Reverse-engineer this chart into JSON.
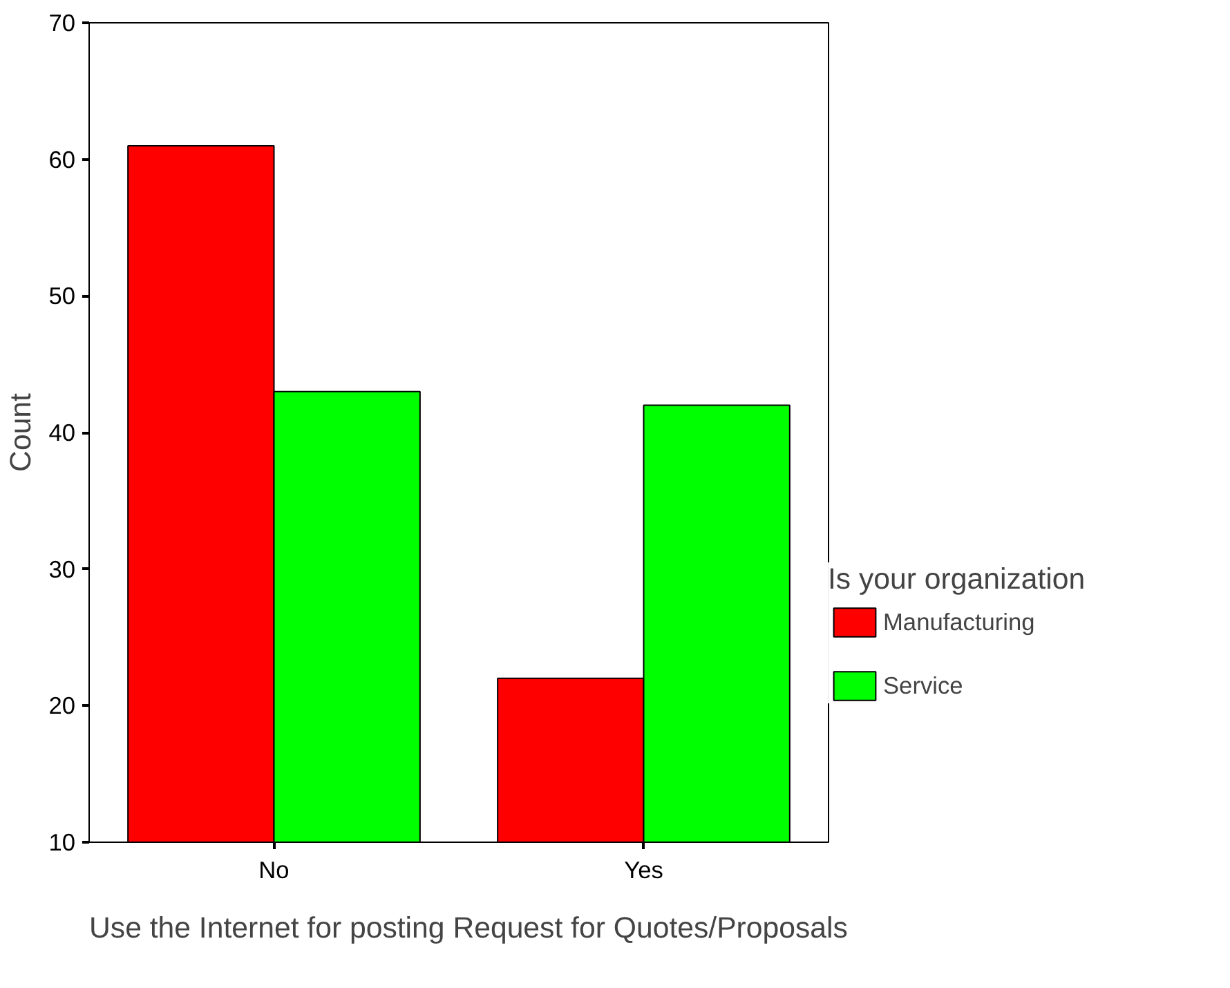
{
  "chart_data": {
    "type": "bar",
    "xlabel": "Use the Internet for posting Request for Quotes/Proposals",
    "ylabel": "Count",
    "legend_title": "Is your organization",
    "categories": [
      "No",
      "Yes"
    ],
    "series": [
      {
        "name": "Manufacturing",
        "color": "#ff0000",
        "values": [
          61,
          22
        ]
      },
      {
        "name": "Service",
        "color": "#00ff00",
        "values": [
          43,
          42
        ]
      }
    ],
    "ylim": [
      10,
      70
    ],
    "yticks": [
      10,
      20,
      30,
      40,
      50,
      60,
      70
    ],
    "grid": false,
    "legend": "right"
  }
}
